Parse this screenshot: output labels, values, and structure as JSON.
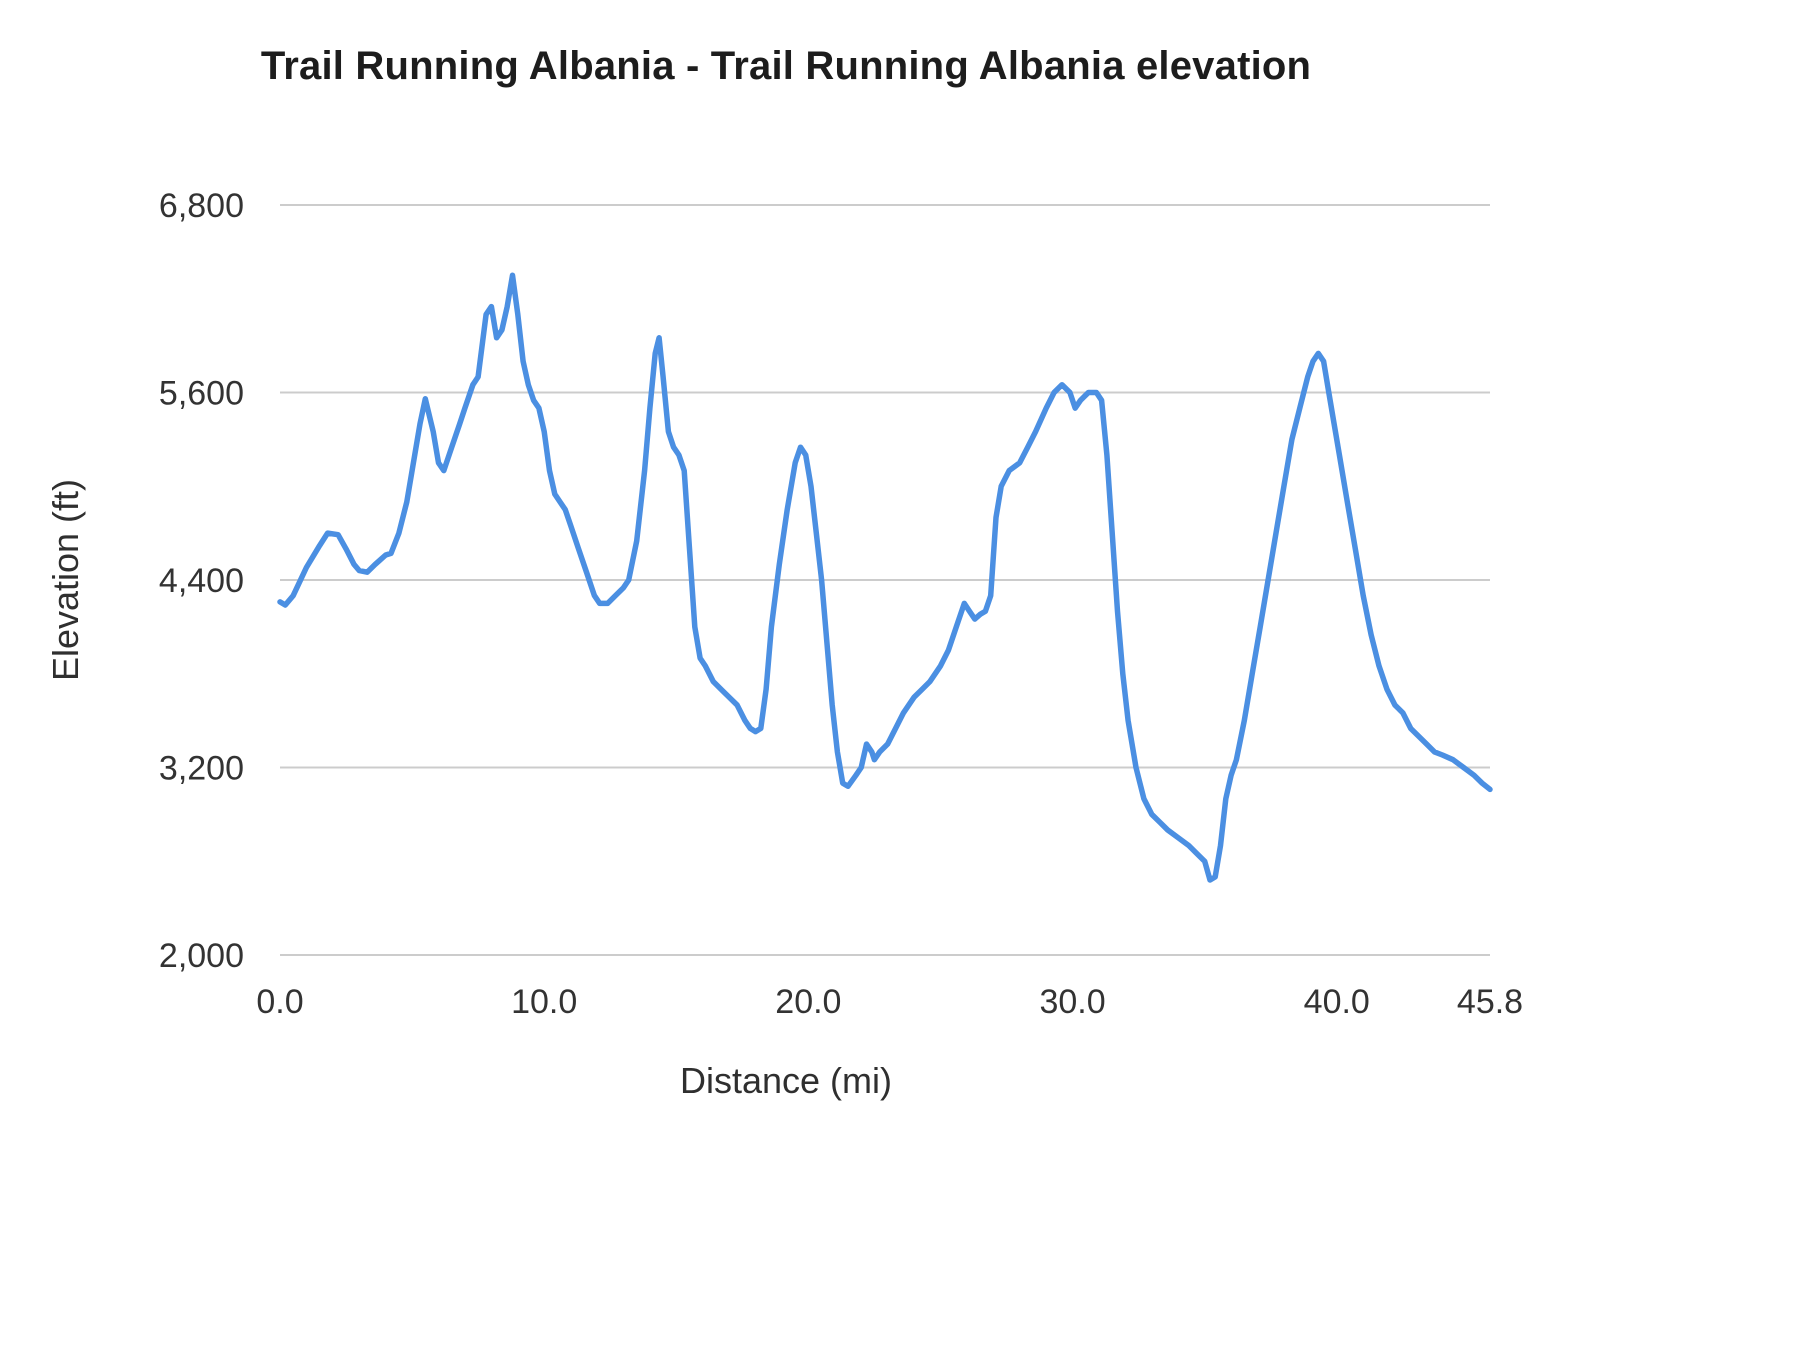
{
  "colors": {
    "line": "#4b8fe2",
    "grid": "#cccccc",
    "title_text": "#1d1d1d",
    "tick_text": "#333333",
    "background": "#ffffff"
  },
  "chart_data": {
    "type": "line",
    "title": "Trail Running Albania - Trail Running Albania elevation",
    "xlabel": "Distance (mi)",
    "ylabel": "Elevation (ft)",
    "xlim": [
      0,
      45.8
    ],
    "ylim": [
      2000,
      6800
    ],
    "grid": "horizontal-only",
    "legend": "none",
    "xticks": {
      "values": [
        0,
        10,
        20,
        30,
        40,
        45.8
      ],
      "labels": [
        "0.0",
        "10.0",
        "20.0",
        "30.0",
        "40.0",
        "45.8"
      ]
    },
    "yticks": {
      "values": [
        2000,
        3200,
        4400,
        5600,
        6800
      ],
      "labels": [
        "2,000",
        "3,200",
        "4,400",
        "5,600",
        "6,800"
      ]
    },
    "series": [
      {
        "name": "elevation",
        "x": [
          0.0,
          0.2,
          0.5,
          1.0,
          1.5,
          1.8,
          2.2,
          2.5,
          2.8,
          3.0,
          3.3,
          3.6,
          4.0,
          4.2,
          4.5,
          4.8,
          5.0,
          5.3,
          5.5,
          5.8,
          6.0,
          6.2,
          6.5,
          6.8,
          7.0,
          7.3,
          7.5,
          7.8,
          8.0,
          8.2,
          8.4,
          8.6,
          8.8,
          9.0,
          9.2,
          9.4,
          9.6,
          9.8,
          10.0,
          10.2,
          10.4,
          10.6,
          10.8,
          11.0,
          11.3,
          11.6,
          11.9,
          12.1,
          12.4,
          12.7,
          13.0,
          13.2,
          13.5,
          13.8,
          14.0,
          14.2,
          14.35,
          14.5,
          14.7,
          14.9,
          15.1,
          15.3,
          15.5,
          15.7,
          15.9,
          16.1,
          16.4,
          16.7,
          17.0,
          17.3,
          17.6,
          17.8,
          18.0,
          18.2,
          18.4,
          18.6,
          18.9,
          19.2,
          19.5,
          19.7,
          19.9,
          20.1,
          20.3,
          20.5,
          20.7,
          20.9,
          21.1,
          21.3,
          21.5,
          21.8,
          22.0,
          22.2,
          22.4,
          22.5,
          22.7,
          23.0,
          23.3,
          23.6,
          24.0,
          24.3,
          24.6,
          25.0,
          25.3,
          25.6,
          25.9,
          26.1,
          26.3,
          26.5,
          26.7,
          26.9,
          27.1,
          27.3,
          27.6,
          28.0,
          28.3,
          28.6,
          29.0,
          29.3,
          29.6,
          29.9,
          30.1,
          30.3,
          30.6,
          30.9,
          31.1,
          31.3,
          31.5,
          31.7,
          31.9,
          32.1,
          32.4,
          32.7,
          33.0,
          33.3,
          33.6,
          34.0,
          34.4,
          34.7,
          35.0,
          35.2,
          35.4,
          35.6,
          35.8,
          36.0,
          36.2,
          36.5,
          36.8,
          37.1,
          37.4,
          37.7,
          38.0,
          38.3,
          38.6,
          38.9,
          39.1,
          39.3,
          39.5,
          39.7,
          39.9,
          40.1,
          40.4,
          40.7,
          41.0,
          41.3,
          41.6,
          41.9,
          42.2,
          42.5,
          42.8,
          43.1,
          43.4,
          43.7,
          44.0,
          44.4,
          44.8,
          45.2,
          45.5,
          45.8
        ],
        "y": [
          4260,
          4240,
          4300,
          4480,
          4620,
          4700,
          4690,
          4600,
          4500,
          4460,
          4450,
          4500,
          4560,
          4570,
          4700,
          4900,
          5100,
          5400,
          5560,
          5350,
          5150,
          5100,
          5250,
          5400,
          5500,
          5650,
          5700,
          6100,
          6150,
          5950,
          6000,
          6150,
          6350,
          6100,
          5800,
          5650,
          5550,
          5500,
          5350,
          5100,
          4950,
          4900,
          4850,
          4750,
          4600,
          4450,
          4300,
          4250,
          4250,
          4300,
          4350,
          4400,
          4650,
          5100,
          5500,
          5850,
          5950,
          5700,
          5350,
          5250,
          5200,
          5100,
          4600,
          4100,
          3900,
          3850,
          3750,
          3700,
          3650,
          3600,
          3500,
          3450,
          3430,
          3450,
          3700,
          4100,
          4500,
          4850,
          5150,
          5250,
          5200,
          5000,
          4700,
          4400,
          4000,
          3600,
          3300,
          3100,
          3080,
          3150,
          3200,
          3350,
          3300,
          3250,
          3300,
          3350,
          3450,
          3550,
          3650,
          3700,
          3750,
          3850,
          3950,
          4100,
          4250,
          4200,
          4150,
          4180,
          4200,
          4300,
          4800,
          5000,
          5100,
          5150,
          5250,
          5350,
          5500,
          5600,
          5650,
          5600,
          5500,
          5550,
          5600,
          5600,
          5550,
          5200,
          4700,
          4200,
          3800,
          3500,
          3200,
          3000,
          2900,
          2850,
          2800,
          2750,
          2700,
          2650,
          2600,
          2480,
          2500,
          2700,
          3000,
          3150,
          3250,
          3500,
          3800,
          4100,
          4400,
          4700,
          5000,
          5300,
          5500,
          5700,
          5800,
          5850,
          5800,
          5600,
          5400,
          5200,
          4900,
          4600,
          4300,
          4050,
          3850,
          3700,
          3600,
          3550,
          3450,
          3400,
          3350,
          3300,
          3280,
          3250,
          3200,
          3150,
          3100,
          3060
        ]
      }
    ]
  }
}
